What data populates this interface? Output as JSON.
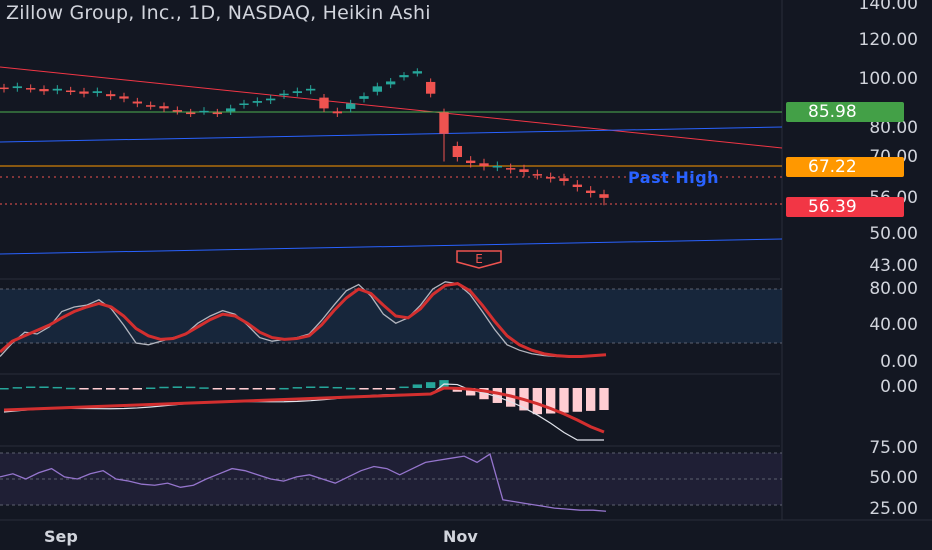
{
  "title": "Zillow Group, Inc., 1D, NASDAQ, Heikin Ashi",
  "colors": {
    "background": "#131722",
    "bull": "#26a69a",
    "bear": "#ef5350",
    "green_line": "#4caf50",
    "blue_line": "#2962ff",
    "red_line": "#f23645",
    "orange_line": "#ff9800",
    "stoch_k": "#b2b5be",
    "stoch_d": "#d32f2f",
    "rsi": "#9575cd"
  },
  "price_axis": {
    "ticks": [
      "140.00",
      "120.00",
      "100.00",
      "80.00",
      "70.00",
      "56.00",
      "50.00",
      "43.00"
    ]
  },
  "price_tags": [
    {
      "value": "85.98",
      "color": "#43a047"
    },
    {
      "value": "67.22",
      "color": "#ff9800"
    },
    {
      "value": "56.39",
      "color": "#f23645"
    }
  ],
  "annotation": "Past High",
  "earnings_marker": "E",
  "stoch_axis": {
    "ticks": [
      "80.00",
      "40.00",
      "0.00"
    ]
  },
  "macd_axis": {
    "ticks": [
      "0.00"
    ]
  },
  "rsi_axis": {
    "ticks": [
      "75.00",
      "50.00",
      "25.00"
    ]
  },
  "time_axis": {
    "labels": [
      "Sep",
      "Nov"
    ]
  },
  "chart_data": {
    "type": "candlestick",
    "title": "Zillow Group, Inc., 1D, NASDAQ, Heikin Ashi",
    "y_range": [
      43,
      140
    ],
    "horizontal_levels": [
      85.98,
      67.22,
      56.39
    ],
    "approx_closes": [
      96,
      97,
      96,
      95,
      96,
      95,
      94,
      95,
      93,
      92,
      90,
      89,
      88,
      87,
      86,
      87,
      86,
      88,
      90,
      91,
      92,
      94,
      95,
      96,
      88,
      86,
      90,
      93,
      97,
      99,
      102,
      104,
      94,
      78,
      70,
      68,
      67,
      67,
      66,
      65,
      64,
      63,
      62,
      60,
      58,
      56.39
    ],
    "stochastic": {
      "range": [
        0,
        100
      ],
      "band": [
        20,
        80
      ]
    },
    "rsi": {
      "range": [
        0,
        100
      ],
      "band": [
        30,
        70
      ]
    }
  }
}
